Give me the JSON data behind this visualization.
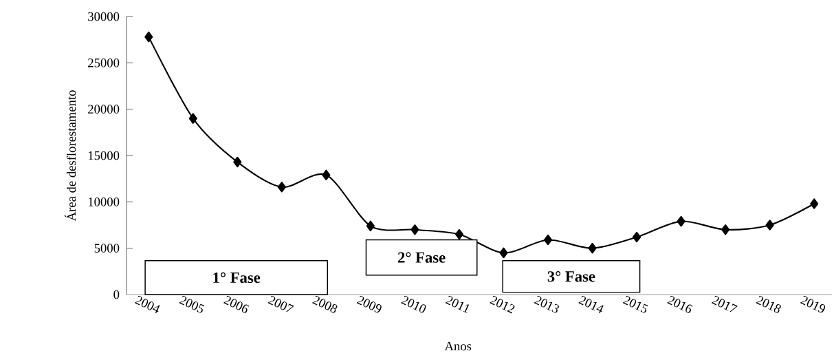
{
  "chart_data": {
    "type": "line",
    "xlabel": "Anos",
    "ylabel": "Área de desflorestamento",
    "categories": [
      "2004",
      "2005",
      "2006",
      "2007",
      "2008",
      "2009",
      "2010",
      "2011",
      "2012",
      "2013",
      "2014",
      "2015",
      "2016",
      "2017",
      "2018",
      "2019"
    ],
    "values": [
      27800,
      19000,
      14300,
      11600,
      12900,
      7400,
      7000,
      6500,
      4500,
      5900,
      5000,
      6200,
      7900,
      7000,
      7500,
      9800
    ],
    "color": "#000000",
    "marker": "diamond",
    "line_style": "solid",
    "ylim": [
      0,
      30000
    ],
    "yticks": [
      0,
      5000,
      10000,
      15000,
      20000,
      25000,
      30000
    ],
    "annotations": [
      "1° Fase",
      "2° Fase",
      "3° Fase"
    ]
  }
}
